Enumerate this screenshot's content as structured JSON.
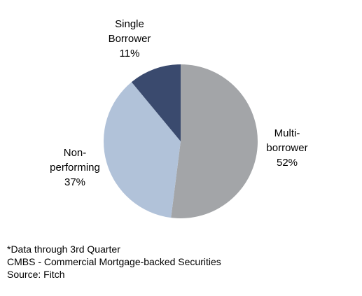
{
  "chart_data": {
    "type": "pie",
    "title": "",
    "slices": [
      {
        "label_lines": [
          "Multi-",
          "borrower"
        ],
        "pct_label": "52%",
        "value": 52,
        "color": "#a3a5a8"
      },
      {
        "label_lines": [
          "Non-",
          "performing"
        ],
        "pct_label": "37%",
        "value": 37,
        "color": "#b1c2d9"
      },
      {
        "label_lines": [
          "Single",
          "Borrower"
        ],
        "pct_label": "11%",
        "value": 11,
        "color": "#3a4a6e"
      }
    ]
  },
  "footnotes": [
    "*Data through 3rd Quarter",
    "CMBS - Commercial Mortgage-backed Securities",
    "Source: Fitch"
  ]
}
